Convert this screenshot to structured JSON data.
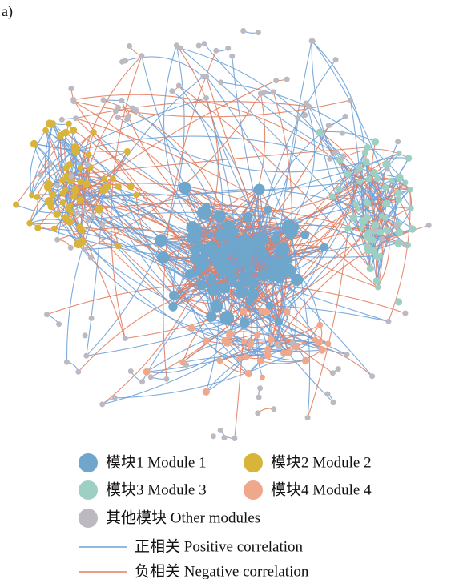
{
  "panel_label": "a)",
  "legend": {
    "nodes": [
      {
        "label": "模块1 Module 1",
        "color": "#6ea6cc"
      },
      {
        "label": "模块2 Module 2",
        "color": "#d8b53a"
      },
      {
        "label": "模块3 Module 3",
        "color": "#9dcfc3"
      },
      {
        "label": "模块4 Module 4",
        "color": "#f0a88d"
      },
      {
        "label": "其他模块 Other modules",
        "color": "#bcb9c0"
      }
    ],
    "edges": [
      {
        "label": "正相关 Positive correlation",
        "color": "#6fa2d8"
      },
      {
        "label": "负相关 Negative correlation",
        "color": "#e27e62"
      }
    ]
  }
}
